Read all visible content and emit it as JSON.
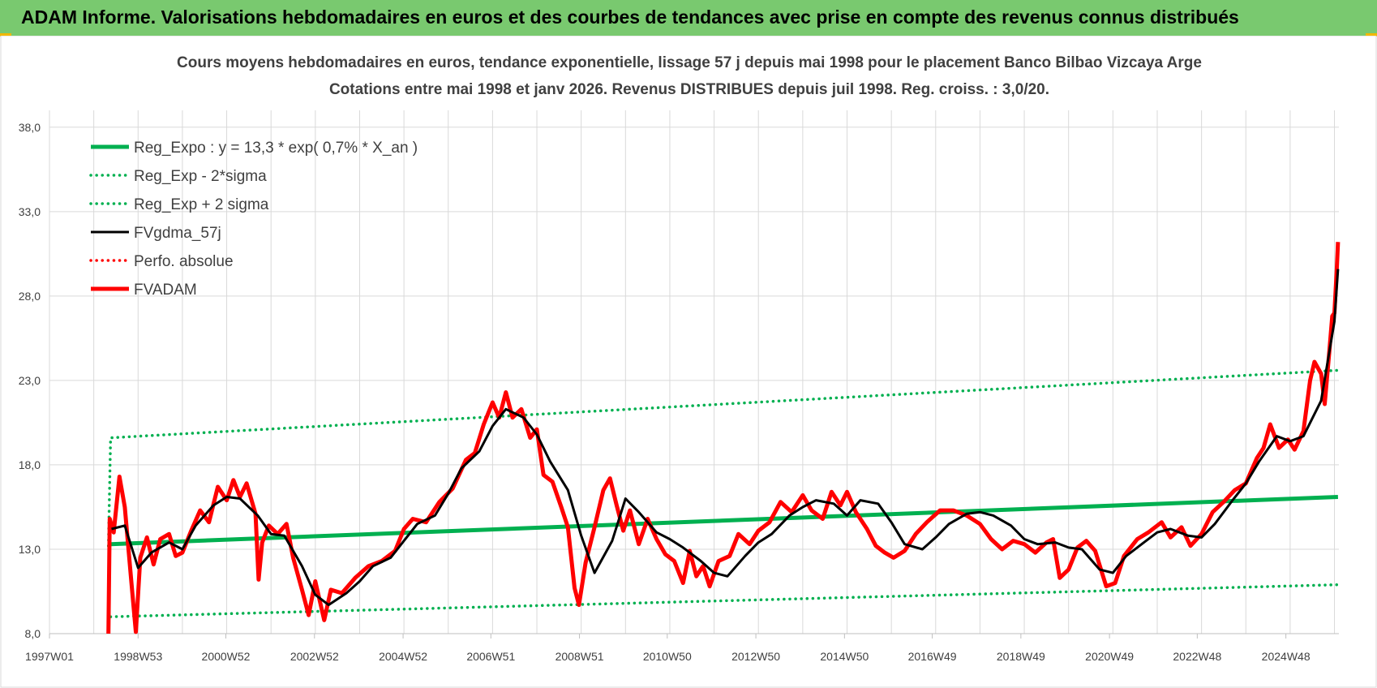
{
  "banner": {
    "title": "ADAM Informe. Valorisations hebdomadaires en euros et des courbes de tendances avec prise en compte des revenus connus distribués"
  },
  "chart_data": {
    "type": "line",
    "title": "Cours moyens hebdomadaires en euros, tendance exponentielle, lissage 57 j depuis mai 1998 pour le placement Banco Bilbao Vizcaya Arge",
    "subtitle": "Cotations entre mai 1998 et janv 2026. Revenus DISTRIBUES depuis juil 1998. Reg. croiss. : 3,0/20.",
    "xlabel": "",
    "ylabel": "",
    "ylim": [
      8,
      39
    ],
    "yticks": [
      "8,0",
      "13,0",
      "18,0",
      "23,0",
      "28,0",
      "33,0",
      "38,0"
    ],
    "xticks": [
      "1997W01",
      "1998W53",
      "2000W52",
      "2002W52",
      "2004W52",
      "2006W51",
      "2008W51",
      "2010W50",
      "2012W50",
      "2014W50",
      "2016W49",
      "2018W49",
      "2020W49",
      "2022W48",
      "2024W48"
    ],
    "xlim": [
      1997.0,
      2026.1
    ],
    "grid": true,
    "legend_position": "top-left",
    "colors": {
      "trend": "#00b050",
      "band": "#00b050",
      "smooth": "#000000",
      "perfo": "#ff0000",
      "price": "#ff0000"
    },
    "series": [
      {
        "name": "Reg_Expo : y = 13,3 * exp( 0,7% *  X_an )",
        "style": "solid-thick",
        "color": "#00b050",
        "points": [
          [
            1998.38,
            13.3
          ],
          [
            2026.08,
            16.1
          ]
        ]
      },
      {
        "name": "Reg_Exp - 2*sigma",
        "style": "dotted",
        "color": "#00b050",
        "points": [
          [
            1998.38,
            9.0
          ],
          [
            2026.08,
            10.9
          ]
        ]
      },
      {
        "name": "Reg_Exp + 2 sigma",
        "style": "dotted",
        "color": "#00b050",
        "points": [
          [
            1998.33,
            13.2
          ],
          [
            1998.38,
            19.6
          ],
          [
            2026.08,
            23.6
          ]
        ]
      },
      {
        "name": "FVgdma_57j",
        "style": "solid",
        "color": "#000000",
        "points": [
          [
            1998.4,
            14.2
          ],
          [
            1998.7,
            14.4
          ],
          [
            1999.0,
            11.9
          ],
          [
            1999.3,
            12.8
          ],
          [
            1999.7,
            13.4
          ],
          [
            2000.0,
            13.0
          ],
          [
            2000.3,
            14.4
          ],
          [
            2000.7,
            15.6
          ],
          [
            2001.0,
            16.1
          ],
          [
            2001.3,
            16.0
          ],
          [
            2001.7,
            15.0
          ],
          [
            2002.0,
            13.9
          ],
          [
            2002.3,
            13.8
          ],
          [
            2002.7,
            12.0
          ],
          [
            2003.0,
            10.3
          ],
          [
            2003.3,
            9.7
          ],
          [
            2003.7,
            10.4
          ],
          [
            2004.0,
            11.1
          ],
          [
            2004.3,
            12.0
          ],
          [
            2004.7,
            12.5
          ],
          [
            2005.0,
            13.5
          ],
          [
            2005.3,
            14.5
          ],
          [
            2005.7,
            15.0
          ],
          [
            2006.0,
            16.3
          ],
          [
            2006.3,
            17.8
          ],
          [
            2006.7,
            18.8
          ],
          [
            2007.0,
            20.3
          ],
          [
            2007.3,
            21.3
          ],
          [
            2007.7,
            20.8
          ],
          [
            2008.0,
            19.8
          ],
          [
            2008.3,
            18.2
          ],
          [
            2008.7,
            16.5
          ],
          [
            2009.0,
            13.8
          ],
          [
            2009.3,
            11.6
          ],
          [
            2009.7,
            13.5
          ],
          [
            2010.0,
            16.0
          ],
          [
            2010.3,
            15.2
          ],
          [
            2010.7,
            14.0
          ],
          [
            2011.0,
            13.6
          ],
          [
            2011.3,
            13.1
          ],
          [
            2011.7,
            12.3
          ],
          [
            2012.0,
            11.6
          ],
          [
            2012.3,
            11.4
          ],
          [
            2012.7,
            12.6
          ],
          [
            2013.0,
            13.4
          ],
          [
            2013.3,
            13.9
          ],
          [
            2013.7,
            15.0
          ],
          [
            2014.0,
            15.5
          ],
          [
            2014.3,
            15.9
          ],
          [
            2014.7,
            15.7
          ],
          [
            2015.0,
            15.0
          ],
          [
            2015.3,
            15.9
          ],
          [
            2015.7,
            15.7
          ],
          [
            2016.0,
            14.6
          ],
          [
            2016.3,
            13.3
          ],
          [
            2016.7,
            13.0
          ],
          [
            2017.0,
            13.7
          ],
          [
            2017.3,
            14.5
          ],
          [
            2017.7,
            15.1
          ],
          [
            2018.0,
            15.2
          ],
          [
            2018.3,
            15.0
          ],
          [
            2018.7,
            14.4
          ],
          [
            2019.0,
            13.6
          ],
          [
            2019.3,
            13.3
          ],
          [
            2019.7,
            13.4
          ],
          [
            2020.0,
            13.1
          ],
          [
            2020.3,
            13.0
          ],
          [
            2020.7,
            11.8
          ],
          [
            2021.0,
            11.6
          ],
          [
            2021.3,
            12.6
          ],
          [
            2021.7,
            13.4
          ],
          [
            2022.0,
            14.0
          ],
          [
            2022.3,
            14.2
          ],
          [
            2022.7,
            13.8
          ],
          [
            2023.0,
            13.7
          ],
          [
            2023.3,
            14.5
          ],
          [
            2023.7,
            15.9
          ],
          [
            2024.0,
            16.9
          ],
          [
            2024.3,
            18.2
          ],
          [
            2024.7,
            19.7
          ],
          [
            2025.0,
            19.4
          ],
          [
            2025.3,
            19.7
          ],
          [
            2025.7,
            21.8
          ],
          [
            2026.0,
            26.5
          ],
          [
            2026.08,
            29.6
          ]
        ]
      },
      {
        "name": "Perfo. absolue",
        "style": "dotted",
        "color": "#ff0000",
        "points": []
      },
      {
        "name": "FVADAM",
        "style": "solid-thick",
        "color": "#ff0000",
        "points": [
          [
            1998.33,
            8.0
          ],
          [
            1998.36,
            14.8
          ],
          [
            1998.45,
            14.0
          ],
          [
            1998.58,
            17.3
          ],
          [
            1998.7,
            15.5
          ],
          [
            1998.85,
            11.0
          ],
          [
            1998.95,
            8.1
          ],
          [
            1999.05,
            12.5
          ],
          [
            1999.2,
            13.7
          ],
          [
            1999.35,
            12.1
          ],
          [
            1999.5,
            13.6
          ],
          [
            1999.7,
            13.9
          ],
          [
            1999.85,
            12.6
          ],
          [
            2000.0,
            12.8
          ],
          [
            2000.2,
            14.1
          ],
          [
            2000.4,
            15.3
          ],
          [
            2000.6,
            14.6
          ],
          [
            2000.8,
            16.7
          ],
          [
            2001.0,
            15.9
          ],
          [
            2001.15,
            17.1
          ],
          [
            2001.3,
            16.1
          ],
          [
            2001.45,
            16.9
          ],
          [
            2001.65,
            15.1
          ],
          [
            2001.72,
            11.2
          ],
          [
            2001.8,
            13.4
          ],
          [
            2001.95,
            14.4
          ],
          [
            2002.15,
            13.9
          ],
          [
            2002.35,
            14.5
          ],
          [
            2002.5,
            12.5
          ],
          [
            2002.7,
            10.6
          ],
          [
            2002.85,
            9.1
          ],
          [
            2003.0,
            11.1
          ],
          [
            2003.2,
            8.8
          ],
          [
            2003.35,
            10.6
          ],
          [
            2003.6,
            10.4
          ],
          [
            2003.9,
            11.3
          ],
          [
            2004.2,
            12.0
          ],
          [
            2004.5,
            12.3
          ],
          [
            2004.8,
            12.9
          ],
          [
            2005.0,
            14.2
          ],
          [
            2005.2,
            14.8
          ],
          [
            2005.5,
            14.6
          ],
          [
            2005.8,
            15.8
          ],
          [
            2006.1,
            16.6
          ],
          [
            2006.4,
            18.3
          ],
          [
            2006.6,
            18.7
          ],
          [
            2006.8,
            20.4
          ],
          [
            2007.0,
            21.7
          ],
          [
            2007.15,
            20.8
          ],
          [
            2007.3,
            22.3
          ],
          [
            2007.45,
            20.8
          ],
          [
            2007.65,
            21.3
          ],
          [
            2007.85,
            19.6
          ],
          [
            2008.0,
            20.1
          ],
          [
            2008.15,
            17.4
          ],
          [
            2008.35,
            17.0
          ],
          [
            2008.55,
            15.5
          ],
          [
            2008.7,
            14.3
          ],
          [
            2008.85,
            10.7
          ],
          [
            2008.95,
            9.7
          ],
          [
            2009.1,
            12.2
          ],
          [
            2009.3,
            14.3
          ],
          [
            2009.5,
            16.5
          ],
          [
            2009.65,
            17.2
          ],
          [
            2009.8,
            15.6
          ],
          [
            2009.95,
            14.1
          ],
          [
            2010.1,
            15.3
          ],
          [
            2010.3,
            13.3
          ],
          [
            2010.5,
            14.8
          ],
          [
            2010.7,
            13.6
          ],
          [
            2010.9,
            12.7
          ],
          [
            2011.1,
            12.3
          ],
          [
            2011.3,
            11.0
          ],
          [
            2011.45,
            12.9
          ],
          [
            2011.6,
            11.4
          ],
          [
            2011.75,
            12.0
          ],
          [
            2011.9,
            10.8
          ],
          [
            2012.1,
            12.3
          ],
          [
            2012.35,
            12.6
          ],
          [
            2012.55,
            13.9
          ],
          [
            2012.8,
            13.3
          ],
          [
            2013.0,
            14.1
          ],
          [
            2013.25,
            14.6
          ],
          [
            2013.5,
            15.8
          ],
          [
            2013.75,
            15.2
          ],
          [
            2014.0,
            16.2
          ],
          [
            2014.2,
            15.3
          ],
          [
            2014.45,
            14.8
          ],
          [
            2014.65,
            16.4
          ],
          [
            2014.85,
            15.6
          ],
          [
            2015.0,
            16.4
          ],
          [
            2015.2,
            15.2
          ],
          [
            2015.45,
            14.2
          ],
          [
            2015.65,
            13.2
          ],
          [
            2015.85,
            12.8
          ],
          [
            2016.05,
            12.5
          ],
          [
            2016.3,
            12.9
          ],
          [
            2016.55,
            13.9
          ],
          [
            2016.8,
            14.6
          ],
          [
            2017.1,
            15.3
          ],
          [
            2017.4,
            15.3
          ],
          [
            2017.7,
            15.0
          ],
          [
            2018.0,
            14.5
          ],
          [
            2018.25,
            13.6
          ],
          [
            2018.5,
            13.0
          ],
          [
            2018.75,
            13.5
          ],
          [
            2019.0,
            13.3
          ],
          [
            2019.25,
            12.8
          ],
          [
            2019.5,
            13.4
          ],
          [
            2019.65,
            13.6
          ],
          [
            2019.8,
            11.3
          ],
          [
            2020.0,
            11.8
          ],
          [
            2020.2,
            13.1
          ],
          [
            2020.4,
            13.5
          ],
          [
            2020.6,
            12.9
          ],
          [
            2020.85,
            10.8
          ],
          [
            2021.05,
            11.0
          ],
          [
            2021.25,
            12.6
          ],
          [
            2021.55,
            13.6
          ],
          [
            2021.8,
            14.0
          ],
          [
            2022.1,
            14.6
          ],
          [
            2022.3,
            13.7
          ],
          [
            2022.55,
            14.3
          ],
          [
            2022.75,
            13.2
          ],
          [
            2023.0,
            13.9
          ],
          [
            2023.25,
            15.2
          ],
          [
            2023.5,
            15.8
          ],
          [
            2023.75,
            16.5
          ],
          [
            2024.0,
            16.9
          ],
          [
            2024.25,
            18.4
          ],
          [
            2024.4,
            19.0
          ],
          [
            2024.55,
            20.4
          ],
          [
            2024.75,
            19.0
          ],
          [
            2024.95,
            19.5
          ],
          [
            2025.1,
            18.9
          ],
          [
            2025.3,
            20.0
          ],
          [
            2025.45,
            23.0
          ],
          [
            2025.55,
            24.1
          ],
          [
            2025.7,
            23.4
          ],
          [
            2025.78,
            21.6
          ],
          [
            2025.88,
            24.6
          ],
          [
            2025.95,
            26.8
          ],
          [
            2026.0,
            27.0
          ],
          [
            2026.05,
            29.5
          ],
          [
            2026.08,
            31.2
          ]
        ]
      }
    ]
  }
}
